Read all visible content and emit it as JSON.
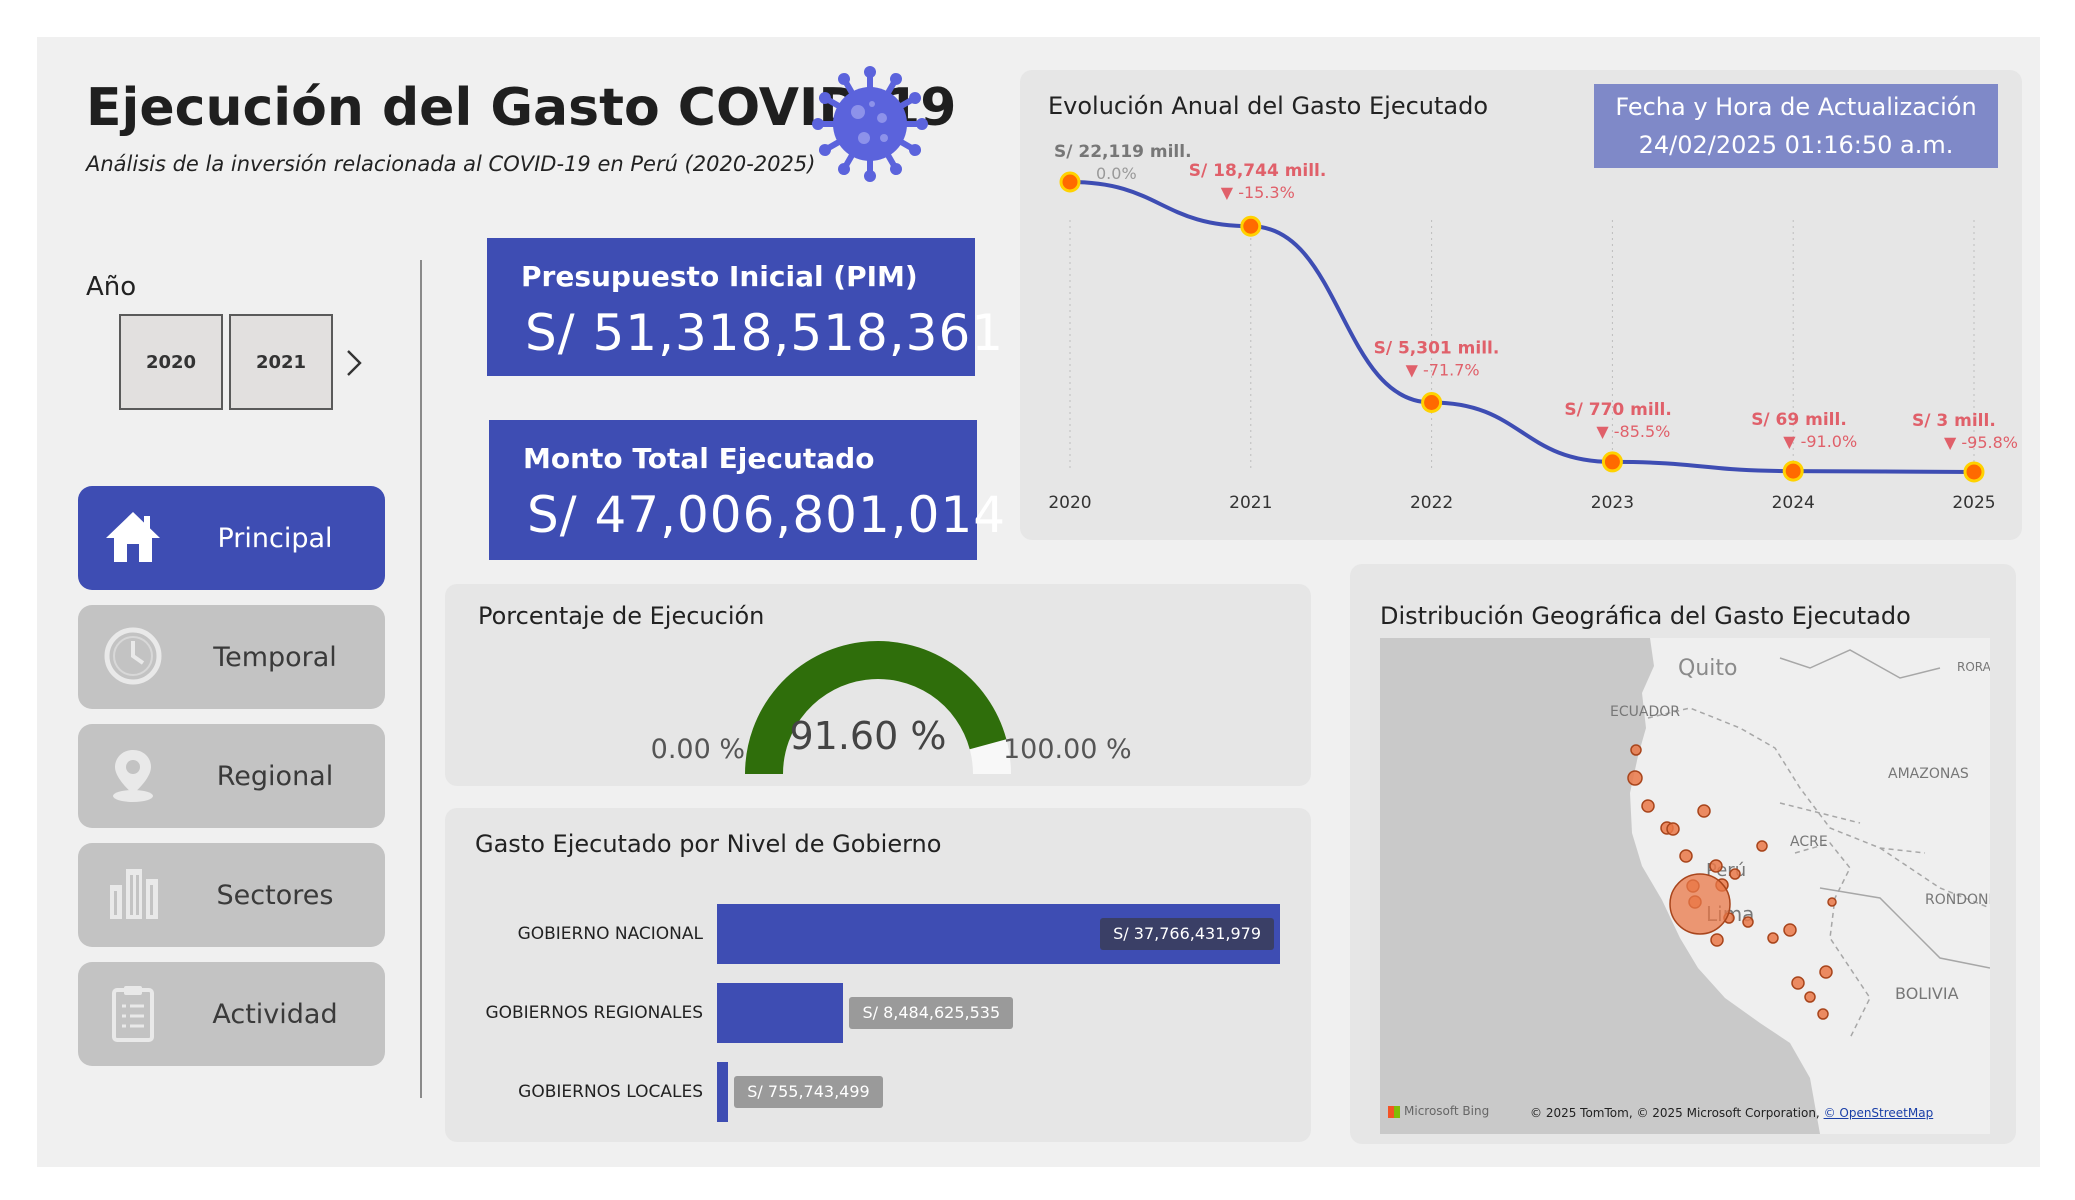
{
  "header": {
    "title": "Ejecución del Gasto COVID-19",
    "subtitle": "Análisis de la inversión relacionada al COVID-19 en Perú (2020-2025)"
  },
  "year_filter": {
    "label": "Año",
    "options": [
      "2020",
      "2021"
    ]
  },
  "nav": {
    "items": [
      {
        "label": "Principal",
        "icon": "home-icon",
        "active": true
      },
      {
        "label": "Temporal",
        "icon": "clock-icon",
        "active": false
      },
      {
        "label": "Regional",
        "icon": "location-pin-icon",
        "active": false
      },
      {
        "label": "Sectores",
        "icon": "buildings-icon",
        "active": false
      },
      {
        "label": "Actividad",
        "icon": "clipboard-icon",
        "active": false
      }
    ]
  },
  "kpis": {
    "pim": {
      "label": "Presupuesto Inicial (PIM)",
      "value": "S/ 51,318,518,361"
    },
    "executed": {
      "label": "Monto Total Ejecutado",
      "value": "S/ 47,006,801,014"
    }
  },
  "gauge": {
    "title": "Porcentaje de Ejecución",
    "value_label": "91.60 %",
    "value": 91.6,
    "min_label": "0.00 %",
    "max_label": "100.00 %",
    "fill_color": "#2f6e0b"
  },
  "annual_chart": {
    "title": "Evolución Anual del Gasto Ejecutado",
    "update_label": "Fecha y Hora de Actualización",
    "update_value": "24/02/2025 01:16:50 a.m."
  },
  "gov_chart": {
    "title": "Gasto Ejecutado por Nivel de Gobierno"
  },
  "map": {
    "title": "Distribución Geográfica del Gasto Ejecutado",
    "labels": [
      "Quito",
      "ECUADOR",
      "AMAZONAS",
      "ACRE",
      "RONDONIA",
      "BOLIVIA",
      "RORA",
      "Perú",
      "Lima"
    ],
    "provider": "Microsoft Bing",
    "attribution": "© 2025 TomTom, © 2025 Microsoft Corporation,",
    "attribution_link": "© OpenStreetMap"
  },
  "chart_data": [
    {
      "type": "line",
      "title": "Evolución Anual del Gasto Ejecutado",
      "x": [
        "2020",
        "2021",
        "2022",
        "2023",
        "2024",
        "2025"
      ],
      "values": [
        22119,
        18744,
        5301,
        770,
        69,
        3
      ],
      "value_labels": [
        "S/ 22,119 mill.",
        "S/ 18,744 mill.",
        "S/ 5,301 mill.",
        "S/ 770 mill.",
        "S/ 69 mill.",
        "S/ 3 mill."
      ],
      "change_labels": [
        "0.0%",
        "▼ -15.3%",
        "▼ -71.7%",
        "▼ -85.5%",
        "▼ -91.0%",
        "▼ -95.8%"
      ],
      "ylim": [
        0,
        22119
      ],
      "line_color": "#3e4db3",
      "marker_color": "#ff6a00"
    },
    {
      "type": "bar",
      "title": "Gasto Ejecutado por Nivel de Gobierno",
      "orientation": "horizontal",
      "categories": [
        "GOBIERNO NACIONAL",
        "GOBIERNOS REGIONALES",
        "GOBIERNOS LOCALES"
      ],
      "values": [
        37766431979,
        8484625535,
        755743499
      ],
      "value_labels": [
        "S/ 37,766,431,979",
        "S/ 8,484,625,535",
        "S/ 755,743,499"
      ],
      "bar_color": "#3e4db3"
    }
  ]
}
